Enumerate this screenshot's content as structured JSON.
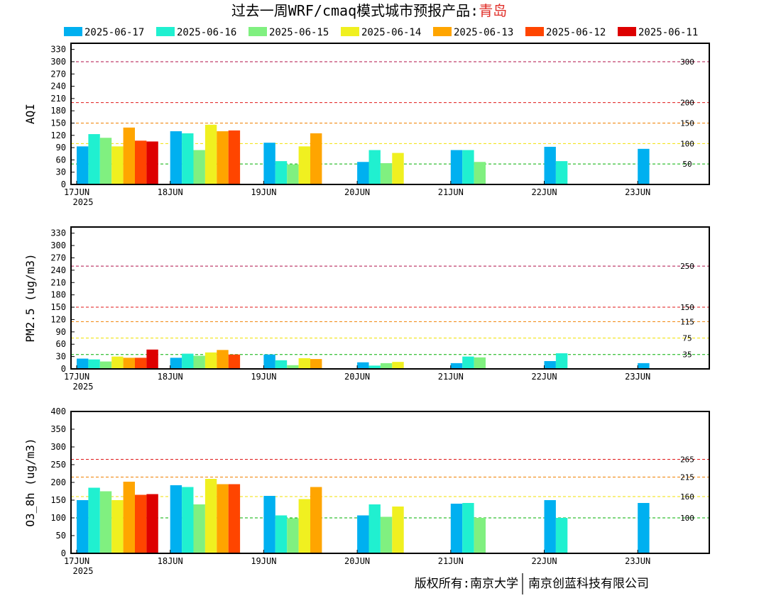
{
  "title": {
    "main": "过去一周WRF/cmaq模式城市预报产品:",
    "city": "青岛",
    "city_color": "#e0302a"
  },
  "legend": [
    {
      "name": "2025-06-17",
      "color": "#00b0f0"
    },
    {
      "name": "2025-06-16",
      "color": "#20f0d0"
    },
    {
      "name": "2025-06-15",
      "color": "#80f080"
    },
    {
      "name": "2025-06-14",
      "color": "#f0f020"
    },
    {
      "name": "2025-06-13",
      "color": "#ffa500"
    },
    {
      "name": "2025-06-12",
      "color": "#ff4500"
    },
    {
      "name": "2025-06-11",
      "color": "#dd0000"
    }
  ],
  "x_ticks": [
    "17JUN",
    "18JUN",
    "19JUN",
    "20JUN",
    "21JUN",
    "22JUN",
    "23JUN"
  ],
  "x_year": "2025",
  "copyright": {
    "left": "版权所有:南京大学",
    "right": "南京创蓝科技有限公司"
  },
  "chart_data": [
    {
      "type": "bar",
      "ylabel": "AQI",
      "ylim": [
        0,
        345
      ],
      "yticks": [
        0,
        30,
        60,
        90,
        120,
        150,
        180,
        210,
        240,
        270,
        300,
        330
      ],
      "thresholds": [
        {
          "value": 300,
          "label": "300",
          "color": "#b0104a"
        },
        {
          "value": 200,
          "label": "200",
          "color": "#e01818"
        },
        {
          "value": 150,
          "label": "150",
          "color": "#f08000"
        },
        {
          "value": 100,
          "label": "100",
          "color": "#f0e000"
        },
        {
          "value": 50,
          "label": "50",
          "color": "#00b000"
        }
      ],
      "categories": [
        "17JUN",
        "18JUN",
        "19JUN",
        "20JUN",
        "21JUN",
        "22JUN",
        "23JUN"
      ],
      "series": [
        {
          "name": "2025-06-17",
          "values": [
            93,
            130,
            102,
            55,
            84,
            92,
            87
          ]
        },
        {
          "name": "2025-06-16",
          "values": [
            123,
            125,
            57,
            84,
            84,
            57,
            null
          ]
        },
        {
          "name": "2025-06-15",
          "values": [
            114,
            84,
            49,
            52,
            55,
            null,
            null
          ]
        },
        {
          "name": "2025-06-14",
          "values": [
            93,
            146,
            93,
            77,
            null,
            null,
            null
          ]
        },
        {
          "name": "2025-06-13",
          "values": [
            139,
            130,
            125,
            null,
            null,
            null,
            null
          ]
        },
        {
          "name": "2025-06-12",
          "values": [
            107,
            132,
            null,
            null,
            null,
            null,
            null
          ]
        },
        {
          "name": "2025-06-11",
          "values": [
            105,
            null,
            null,
            null,
            null,
            null,
            null
          ]
        }
      ]
    },
    {
      "type": "bar",
      "ylabel": "PM2.5 (ug/m3)",
      "ylim": [
        0,
        345
      ],
      "yticks": [
        0,
        30,
        60,
        90,
        120,
        150,
        180,
        210,
        240,
        270,
        300,
        330
      ],
      "thresholds": [
        {
          "value": 250,
          "label": "250",
          "color": "#b0104a"
        },
        {
          "value": 150,
          "label": "150",
          "color": "#e01818"
        },
        {
          "value": 115,
          "label": "115",
          "color": "#f08000"
        },
        {
          "value": 75,
          "label": "75",
          "color": "#f0e000"
        },
        {
          "value": 35,
          "label": "35",
          "color": "#00b000"
        }
      ],
      "categories": [
        "17JUN",
        "18JUN",
        "19JUN",
        "20JUN",
        "21JUN",
        "22JUN",
        "23JUN"
      ],
      "series": [
        {
          "name": "2025-06-17",
          "values": [
            25,
            27,
            35,
            16,
            14,
            19,
            14
          ]
        },
        {
          "name": "2025-06-16",
          "values": [
            23,
            37,
            21,
            8,
            30,
            38,
            null
          ]
        },
        {
          "name": "2025-06-15",
          "values": [
            18,
            32,
            9,
            14,
            28,
            null,
            null
          ]
        },
        {
          "name": "2025-06-14",
          "values": [
            30,
            40,
            26,
            17,
            null,
            null,
            null
          ]
        },
        {
          "name": "2025-06-13",
          "values": [
            27,
            46,
            24,
            null,
            null,
            null,
            null
          ]
        },
        {
          "name": "2025-06-12",
          "values": [
            27,
            35,
            null,
            null,
            null,
            null,
            null
          ]
        },
        {
          "name": "2025-06-11",
          "values": [
            47,
            null,
            null,
            null,
            null,
            null,
            null
          ]
        }
      ]
    },
    {
      "type": "bar",
      "ylabel": "O3_8h (ug/m3)",
      "ylim": [
        0,
        400
      ],
      "yticks": [
        0,
        50,
        100,
        150,
        200,
        250,
        300,
        350,
        400
      ],
      "thresholds": [
        {
          "value": 265,
          "label": "265",
          "color": "#e01818"
        },
        {
          "value": 215,
          "label": "215",
          "color": "#f08000"
        },
        {
          "value": 160,
          "label": "160",
          "color": "#f0e000"
        },
        {
          "value": 100,
          "label": "100",
          "color": "#00b000"
        }
      ],
      "categories": [
        "17JUN",
        "18JUN",
        "19JUN",
        "20JUN",
        "21JUN",
        "22JUN",
        "23JUN"
      ],
      "series": [
        {
          "name": "2025-06-17",
          "values": [
            150,
            192,
            162,
            107,
            140,
            150,
            142
          ]
        },
        {
          "name": "2025-06-16",
          "values": [
            185,
            187,
            107,
            138,
            142,
            100,
            null
          ]
        },
        {
          "name": "2025-06-15",
          "values": [
            175,
            138,
            99,
            103,
            100,
            null,
            null
          ]
        },
        {
          "name": "2025-06-14",
          "values": [
            150,
            210,
            153,
            132,
            null,
            null,
            null
          ]
        },
        {
          "name": "2025-06-13",
          "values": [
            202,
            195,
            187,
            null,
            null,
            null,
            null
          ]
        },
        {
          "name": "2025-06-12",
          "values": [
            165,
            195,
            null,
            null,
            null,
            null,
            null
          ]
        },
        {
          "name": "2025-06-11",
          "values": [
            167,
            null,
            null,
            null,
            null,
            null,
            null
          ]
        }
      ]
    }
  ]
}
